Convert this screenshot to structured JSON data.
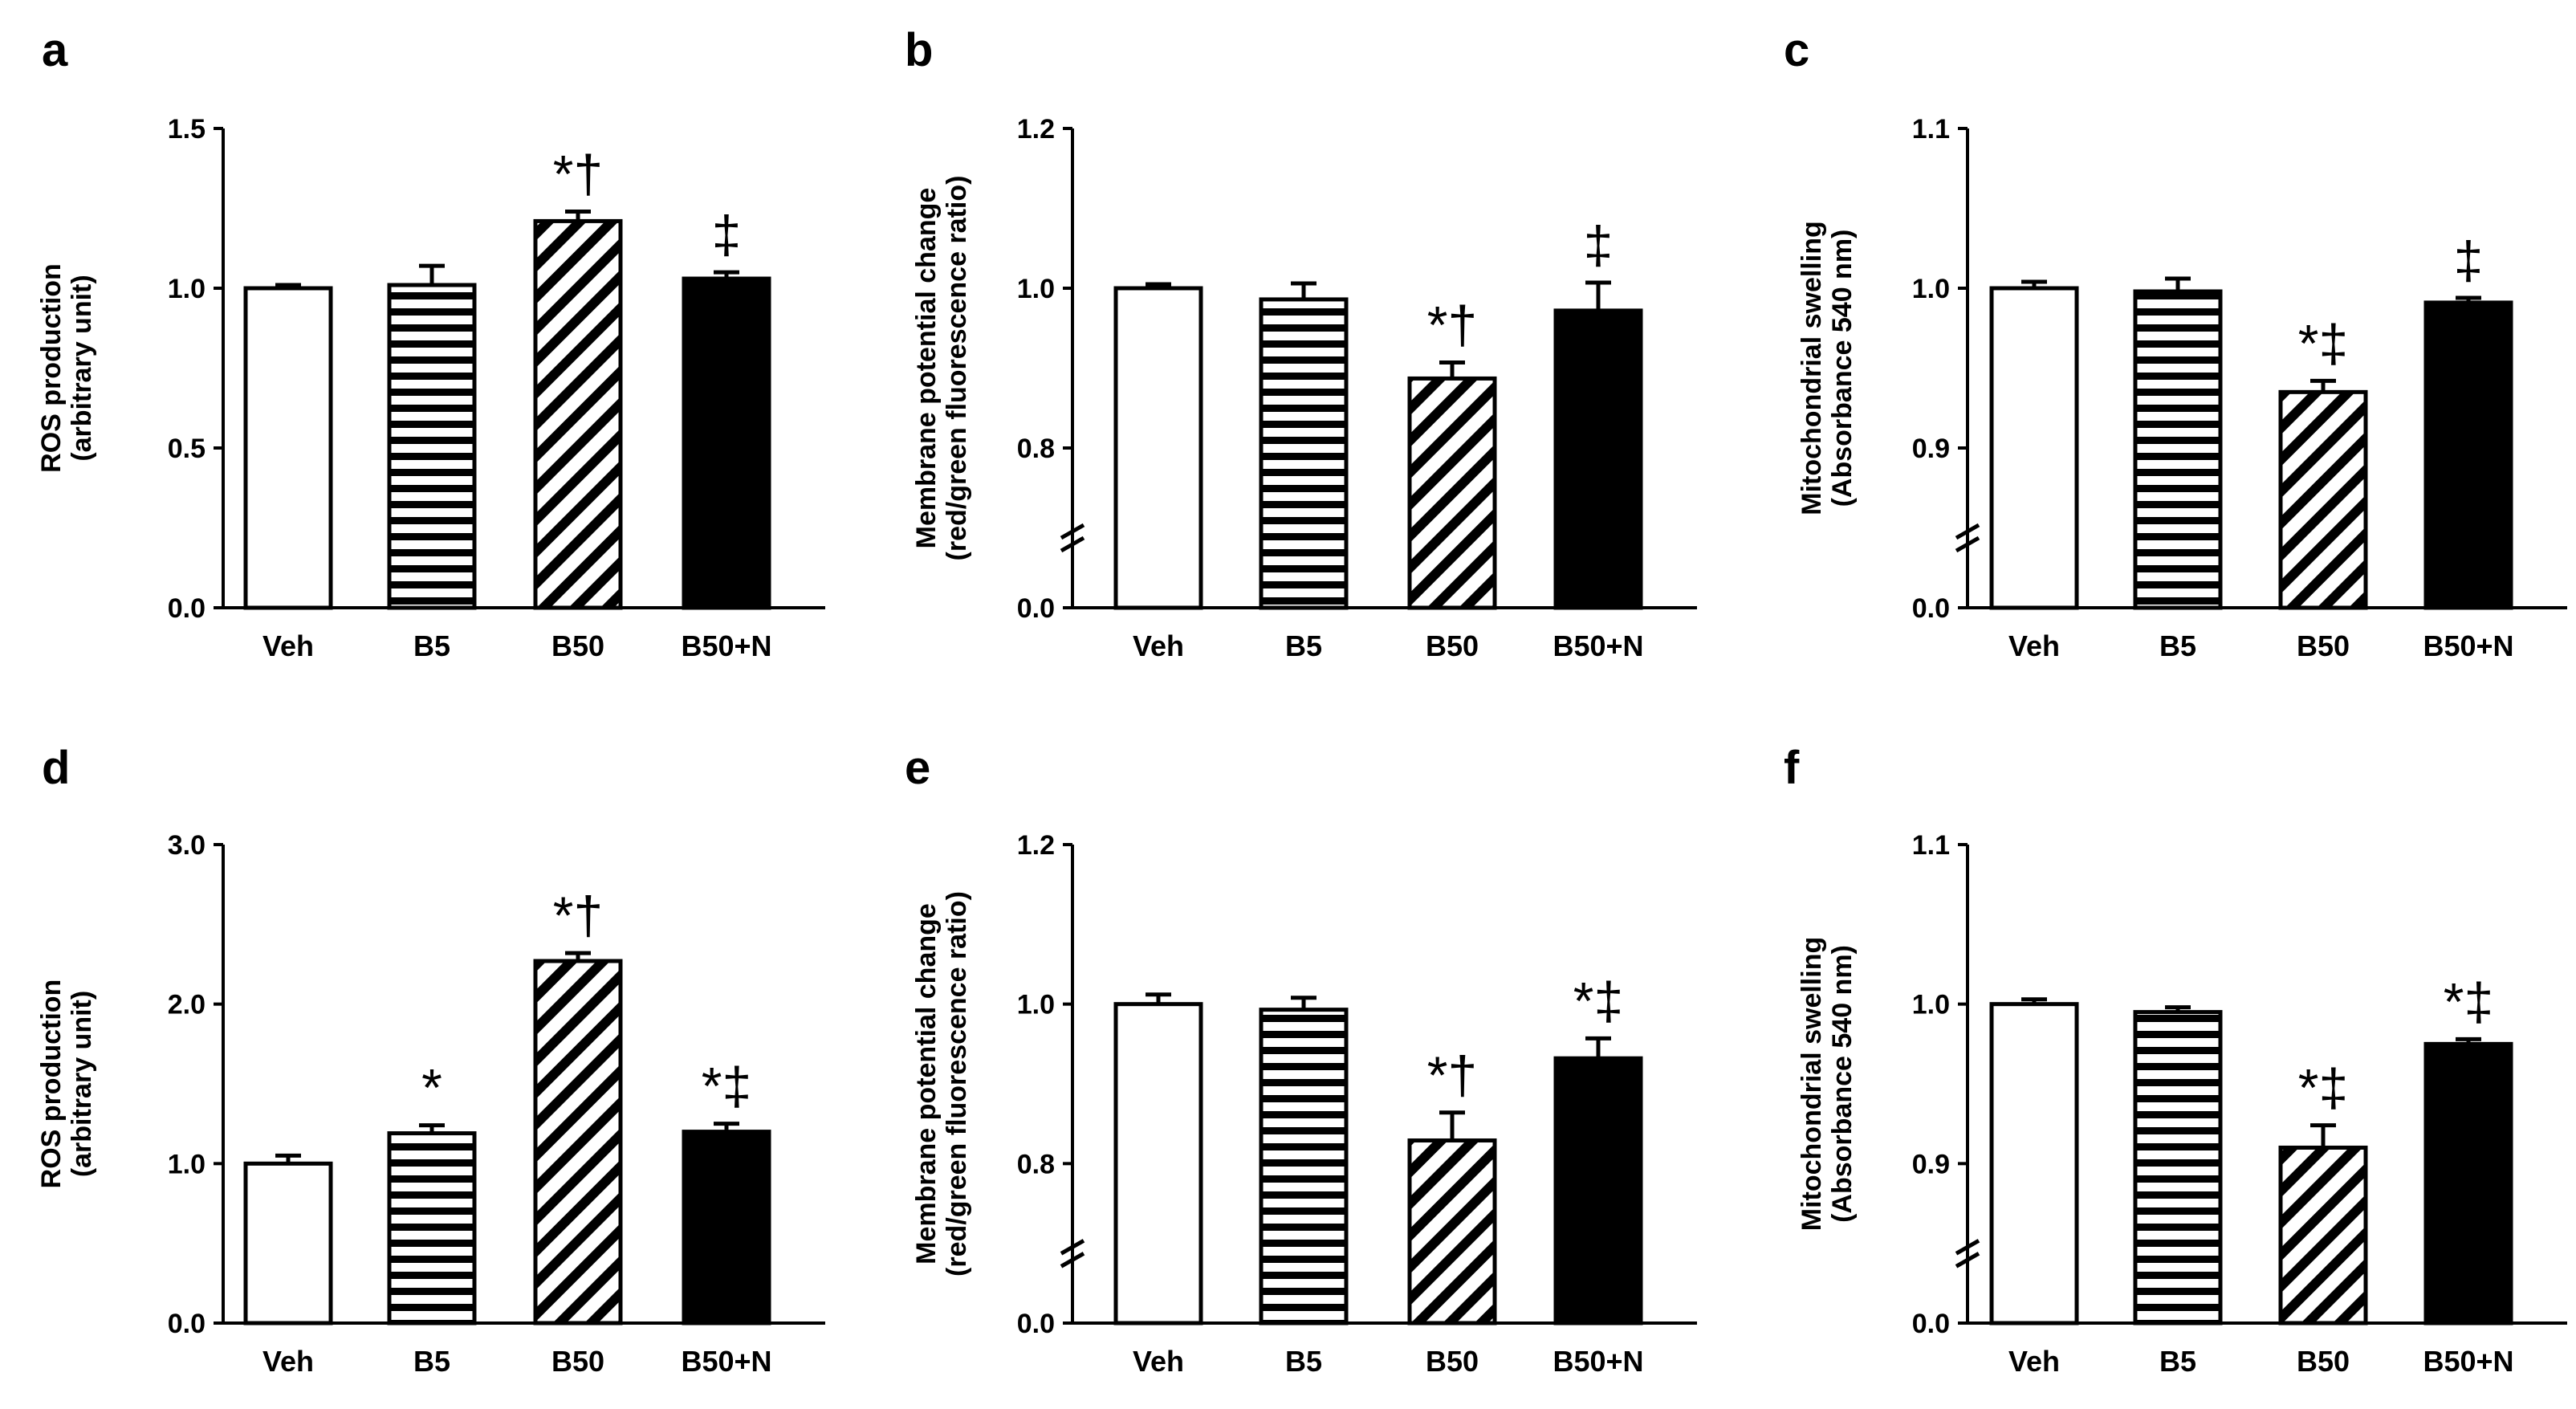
{
  "figure": {
    "categories": [
      "Veh",
      "B5",
      "B50",
      "B50+N"
    ],
    "bar_styles": [
      "white",
      "horizontal-stripes",
      "diagonal-stripes",
      "black"
    ]
  },
  "chart_data": [
    {
      "panel": "a",
      "type": "bar",
      "categories": [
        "Veh",
        "B5",
        "B50",
        "B50+N"
      ],
      "values": [
        1.0,
        1.01,
        1.21,
        1.03
      ],
      "errors": [
        0.01,
        0.06,
        0.03,
        0.02
      ],
      "significance": [
        "",
        "",
        "*†",
        "‡"
      ],
      "ylabel": [
        "ROS production",
        "(arbitrary unit)"
      ],
      "ylim": [
        0.0,
        1.5
      ],
      "yticks": [
        "0.0",
        "0.5",
        "1.0",
        "1.5"
      ],
      "axis_break": false
    },
    {
      "panel": "b",
      "type": "bar",
      "categories": [
        "Veh",
        "B5",
        "B50",
        "B50+N"
      ],
      "values": [
        1.0,
        0.986,
        0.887,
        0.972
      ],
      "errors": [
        0.005,
        0.02,
        0.02,
        0.035
      ],
      "significance": [
        "",
        "",
        "*†",
        "‡"
      ],
      "ylabel": [
        "Membrane potential change",
        "(red/green fluorescence ratio)"
      ],
      "ylim": [
        0.6,
        1.2
      ],
      "yticks": [
        "0.0",
        "0.8",
        "1.0",
        "1.2"
      ],
      "axis_break": true
    },
    {
      "panel": "c",
      "type": "bar",
      "categories": [
        "Veh",
        "B5",
        "B50",
        "B50+N"
      ],
      "values": [
        1.0,
        0.998,
        0.935,
        0.991
      ],
      "errors": [
        0.004,
        0.008,
        0.007,
        0.003
      ],
      "significance": [
        "",
        "",
        "*‡",
        "‡"
      ],
      "ylabel": [
        "Mitochondrial swelling",
        "(Absorbance 540 nm)"
      ],
      "ylim": [
        0.8,
        1.1
      ],
      "yticks": [
        "0.0",
        "0.9",
        "1.0",
        "1.1"
      ],
      "axis_break": true
    },
    {
      "panel": "d",
      "type": "bar",
      "categories": [
        "Veh",
        "B5",
        "B50",
        "B50+N"
      ],
      "values": [
        1.0,
        1.19,
        2.27,
        1.2
      ],
      "errors": [
        0.05,
        0.05,
        0.05,
        0.05
      ],
      "significance": [
        "",
        "*",
        "*†",
        "*‡"
      ],
      "ylabel": [
        "ROS production",
        "(arbitrary unit)"
      ],
      "ylim": [
        0.0,
        3.0
      ],
      "yticks": [
        "0.0",
        "1.0",
        "2.0",
        "3.0"
      ],
      "axis_break": false
    },
    {
      "panel": "e",
      "type": "bar",
      "categories": [
        "Veh",
        "B5",
        "B50",
        "B50+N"
      ],
      "values": [
        1.0,
        0.993,
        0.829,
        0.932
      ],
      "errors": [
        0.012,
        0.015,
        0.035,
        0.025
      ],
      "significance": [
        "",
        "",
        "*†",
        "*‡"
      ],
      "ylabel": [
        "Membrane potential change",
        "(red/green fluorescence ratio)"
      ],
      "ylim": [
        0.6,
        1.2
      ],
      "yticks": [
        "0.0",
        "0.8",
        "1.0",
        "1.2"
      ],
      "axis_break": true
    },
    {
      "panel": "f",
      "type": "bar",
      "categories": [
        "Veh",
        "B5",
        "B50",
        "B50+N"
      ],
      "values": [
        1.0,
        0.995,
        0.91,
        0.975
      ],
      "errors": [
        0.003,
        0.003,
        0.014,
        0.003
      ],
      "significance": [
        "",
        "",
        "*‡",
        "*‡"
      ],
      "ylabel": [
        "Mitochondrial swelling",
        "(Absorbance 540 nm)"
      ],
      "ylim": [
        0.8,
        1.1
      ],
      "yticks": [
        "0.0",
        "0.9",
        "1.0",
        "1.1"
      ],
      "axis_break": true
    }
  ]
}
